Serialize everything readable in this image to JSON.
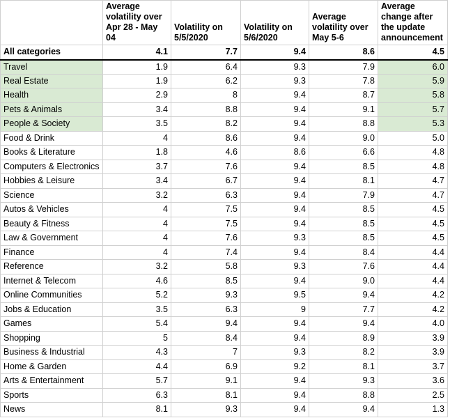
{
  "table": {
    "header": [
      "Average volatility over Apr 28 - May 04",
      "Volatility on 5/5/2020",
      "Volatility on 5/6/2020",
      "Average volatility over May 5-6",
      "Average change after the update announcement"
    ],
    "summary": [
      "All categories",
      "4.1",
      "7.7",
      "9.4",
      "8.6",
      "4.5"
    ],
    "rows": [
      [
        "Travel",
        "1.9",
        "6.4",
        "9.3",
        "7.9",
        "6.0"
      ],
      [
        "Real Estate",
        "1.9",
        "6.2",
        "9.3",
        "7.8",
        "5.9"
      ],
      [
        "Health",
        "2.9",
        "8",
        "9.4",
        "8.7",
        "5.8"
      ],
      [
        "Pets & Animals",
        "3.4",
        "8.8",
        "9.4",
        "9.1",
        "5.7"
      ],
      [
        "People & Society",
        "3.5",
        "8.2",
        "9.4",
        "8.8",
        "5.3"
      ],
      [
        "Food & Drink",
        "4",
        "8.6",
        "9.4",
        "9.0",
        "5.0"
      ],
      [
        "Books & Literature",
        "1.8",
        "4.6",
        "8.6",
        "6.6",
        "4.8"
      ],
      [
        "Computers & Electronics",
        "3.7",
        "7.6",
        "9.4",
        "8.5",
        "4.8"
      ],
      [
        "Hobbies & Leisure",
        "3.4",
        "6.7",
        "9.4",
        "8.1",
        "4.7"
      ],
      [
        "Science",
        "3.2",
        "6.3",
        "9.4",
        "7.9",
        "4.7"
      ],
      [
        "Autos & Vehicles",
        "4",
        "7.5",
        "9.4",
        "8.5",
        "4.5"
      ],
      [
        "Beauty & Fitness",
        "4",
        "7.5",
        "9.4",
        "8.5",
        "4.5"
      ],
      [
        "Law & Government",
        "4",
        "7.6",
        "9.3",
        "8.5",
        "4.5"
      ],
      [
        "Finance",
        "4",
        "7.4",
        "9.4",
        "8.4",
        "4.4"
      ],
      [
        "Reference",
        "3.2",
        "5.8",
        "9.3",
        "7.6",
        "4.4"
      ],
      [
        "Internet & Telecom",
        "4.6",
        "8.5",
        "9.4",
        "9.0",
        "4.4"
      ],
      [
        "Online Communities",
        "5.2",
        "9.3",
        "9.5",
        "9.4",
        "4.2"
      ],
      [
        "Jobs & Education",
        "3.5",
        "6.3",
        "9",
        "7.7",
        "4.2"
      ],
      [
        "Games",
        "5.4",
        "9.4",
        "9.4",
        "9.4",
        "4.0"
      ],
      [
        "Shopping",
        "5",
        "8.4",
        "9.4",
        "8.9",
        "3.9"
      ],
      [
        "Business & Industrial",
        "4.3",
        "7",
        "9.3",
        "8.2",
        "3.9"
      ],
      [
        "Home & Garden",
        "4.4",
        "6.9",
        "9.2",
        "8.1",
        "3.7"
      ],
      [
        "Arts & Entertainment",
        "5.7",
        "9.1",
        "9.4",
        "9.3",
        "3.6"
      ],
      [
        "Sports",
        "6.3",
        "8.1",
        "9.4",
        "8.8",
        "2.5"
      ],
      [
        "News",
        "8.1",
        "9.3",
        "9.4",
        "9.4",
        "1.3"
      ]
    ],
    "highlight": {
      "color": "#d9ead3",
      "rows": [
        0,
        1,
        2,
        3,
        4
      ],
      "columns": [
        0,
        5
      ]
    }
  }
}
